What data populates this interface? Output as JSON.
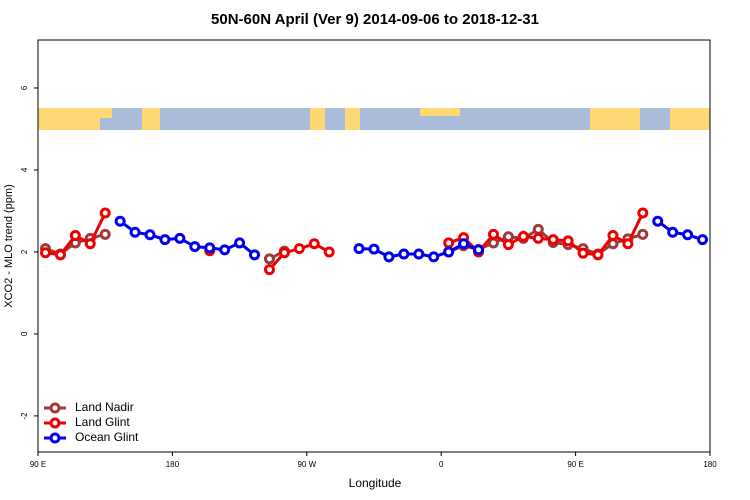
{
  "chart_data": {
    "type": "line",
    "title": "50N-60N April (Ver 9)   2014-09-06 to 2018-12-31",
    "x_label": "Longitude",
    "y_label": "XCO2 - MLO trend (ppm)",
    "x": [
      95,
      105,
      115,
      125,
      135,
      145,
      155,
      165,
      175,
      185,
      195,
      205,
      215,
      225,
      235,
      245,
      255,
      265,
      275,
      285,
      295,
      305,
      315,
      325,
      335,
      345,
      355,
      365,
      375,
      385,
      395,
      405,
      415,
      425,
      435,
      445,
      455,
      465,
      475,
      485,
      495,
      505,
      515,
      525,
      535
    ],
    "series": [
      {
        "name": "Land Nadir",
        "color": "#9e3a3a",
        "values": [
          2.08,
          1.95,
          2.22,
          2.33,
          2.43,
          null,
          null,
          null,
          null,
          null,
          null,
          null,
          null,
          null,
          null,
          1.83,
          2.02,
          null,
          null,
          null,
          null,
          null,
          null,
          null,
          null,
          null,
          null,
          2.0,
          2.15,
          2.06,
          2.22,
          2.37,
          2.33,
          2.55,
          2.23,
          2.18,
          2.08,
          1.95,
          2.2,
          2.32,
          2.43,
          null,
          null,
          null,
          null
        ]
      },
      {
        "name": "Land Glint",
        "color": "#ee0000",
        "values": [
          1.98,
          1.93,
          2.4,
          2.2,
          2.95,
          null,
          null,
          null,
          null,
          null,
          null,
          2.03,
          null,
          null,
          null,
          1.57,
          1.98,
          2.08,
          2.2,
          2.0,
          null,
          null,
          null,
          null,
          null,
          null,
          null,
          2.22,
          2.35,
          2.0,
          2.43,
          2.18,
          2.38,
          2.33,
          2.3,
          2.27,
          1.97,
          1.93,
          2.4,
          2.2,
          2.95,
          null,
          null,
          null,
          null
        ]
      },
      {
        "name": "Ocean Glint",
        "color": "#0000ee",
        "values": [
          null,
          null,
          null,
          null,
          null,
          2.75,
          2.48,
          2.42,
          2.3,
          2.33,
          2.13,
          2.1,
          2.05,
          2.22,
          1.93,
          null,
          null,
          null,
          null,
          null,
          null,
          2.08,
          2.07,
          1.88,
          1.95,
          1.95,
          1.88,
          2.0,
          2.2,
          2.05,
          null,
          null,
          null,
          null,
          null,
          null,
          null,
          null,
          null,
          null,
          null,
          2.75,
          2.48,
          2.42,
          2.3
        ]
      }
    ],
    "xlim": [
      90,
      540
    ],
    "xticks": [
      {
        "value": 90,
        "label": "90 E"
      },
      180,
      {
        "value": 270,
        "label": "90 W"
      },
      {
        "value": 360,
        "label": "0"
      },
      {
        "value": 450,
        "label": "90 E"
      },
      {
        "value": 540,
        "label": "180"
      }
    ],
    "ylim": [
      -2.88,
      7.17
    ],
    "yticks": [
      -2,
      0,
      2,
      4,
      6
    ],
    "legend": "bottom-left"
  }
}
